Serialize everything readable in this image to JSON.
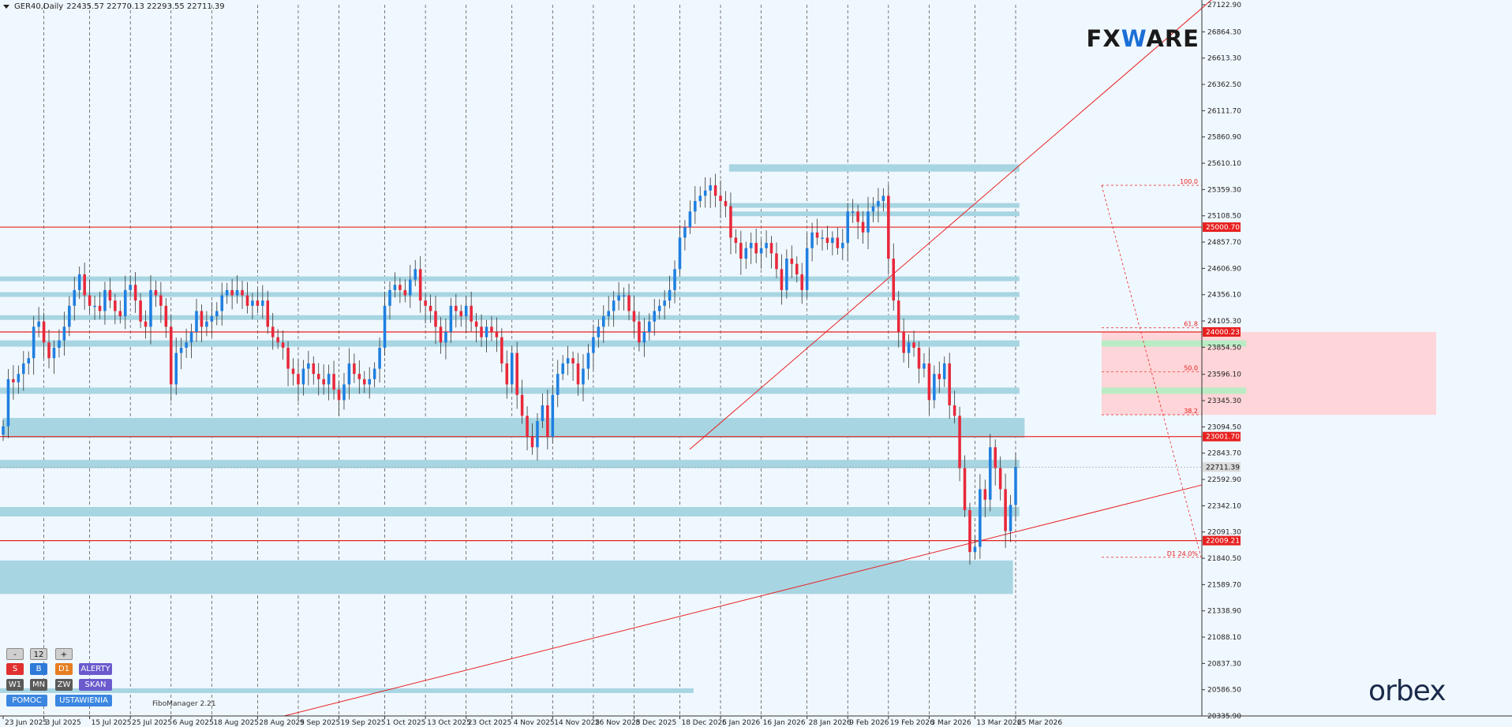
{
  "header": {
    "symbol": "GER40,Daily",
    "ohlc": "22435.57 22770.13 22293.55 22711.39"
  },
  "brand": {
    "prefix": "FX",
    "mid": "W",
    "suffix": "ARE"
  },
  "orbex_logo": "orbex",
  "fibo_manager": "FiboManager 2.21",
  "controls": {
    "minus": "-",
    "value": "12",
    "plus": "+",
    "s": "S",
    "b": "B",
    "d1": "D1",
    "alerty": "ALERTY",
    "w1": "W1",
    "mn": "MN",
    "zw": "ZW",
    "skan": "SKAN",
    "pomoc": "POMOC",
    "ustawienia": "USTAWIENIA"
  },
  "colors": {
    "background": "#f0f8ff",
    "bull": "#1e7fe0",
    "bear": "#e8283a",
    "zone": "#a8d5e2",
    "resistance_zone": "#ffd0d4",
    "green_zone": "#b9ecc4",
    "level_line": "#e82020"
  },
  "chart_data": {
    "type": "candlestick",
    "instrument": "GER40",
    "timeframe": "Daily",
    "ylim": [
      20335.9,
      27122.9
    ],
    "y_ticks": [
      "27122.90",
      "26864.30",
      "26613.30",
      "26362.50",
      "26111.70",
      "25860.90",
      "25610.10",
      "25359.30",
      "25108.50",
      "24857.70",
      "24606.90",
      "24356.10",
      "24105.30",
      "23854.50",
      "23596.10",
      "23345.30",
      "23094.50",
      "22843.70",
      "22592.90",
      "22342.10",
      "22091.30",
      "21840.50",
      "21589.70",
      "21338.90",
      "21088.10",
      "20837.30",
      "20586.50",
      "20335.90"
    ],
    "x_ticks": [
      "23 Jun 2025",
      "3 Jul 2025",
      "15 Jul 2025",
      "25 Jul 2025",
      "6 Aug 2025",
      "18 Aug 2025",
      "28 Aug 2025",
      "9 Sep 2025",
      "19 Sep 2025",
      "1 Oct 2025",
      "13 Oct 2025",
      "23 Oct 2025",
      "4 Nov 2025",
      "14 Nov 2025",
      "26 Nov 2025",
      "8 Dec 2025",
      "18 Dec 2025",
      "6 Jan 2026",
      "16 Jan 2026",
      "28 Jan 2026",
      "9 Feb 2026",
      "19 Feb 2026",
      "3 Mar 2026",
      "13 Mar 2026",
      "25 Mar 2026"
    ],
    "price_labels": [
      {
        "text": "25000.70",
        "value": 25000.7
      },
      {
        "text": "24000.23",
        "value": 24000.23
      },
      {
        "text": "23001.70",
        "value": 23001.7
      },
      {
        "text": "22009.21",
        "value": 22009.21
      },
      {
        "text": "22711.39",
        "value": 22711.39,
        "current": true
      }
    ],
    "fib_levels": [
      {
        "label": "100.0",
        "value": 25400
      },
      {
        "label": "61.8",
        "value": 24040
      },
      {
        "label": "50.0",
        "value": 23620
      },
      {
        "label": "38.2",
        "value": 23210
      },
      {
        "label": "D1 24.0%",
        "value": 21850
      }
    ],
    "closes": [
      23100,
      23550,
      23520,
      23600,
      23700,
      23750,
      24050,
      24100,
      23900,
      23750,
      23850,
      23920,
      24050,
      24250,
      24400,
      24550,
      24350,
      24250,
      24250,
      24200,
      24400,
      24300,
      24200,
      24150,
      24400,
      24450,
      24300,
      24100,
      24050,
      24400,
      24350,
      24250,
      24050,
      23500,
      23800,
      23850,
      23900,
      24000,
      24200,
      24050,
      24100,
      24150,
      24200,
      24350,
      24400,
      24350,
      24400,
      24350,
      24250,
      24300,
      24250,
      24300,
      24050,
      23950,
      23900,
      23850,
      23650,
      23600,
      23500,
      23650,
      23700,
      23600,
      23550,
      23500,
      23600,
      23450,
      23350,
      23500,
      23700,
      23600,
      23550,
      23500,
      23550,
      23650,
      23850,
      24250,
      24400,
      24450,
      24400,
      24350,
      24500,
      24600,
      24300,
      24250,
      24200,
      24050,
      23900,
      24000,
      24250,
      24200,
      24150,
      24250,
      24100,
      24050,
      23950,
      24050,
      24000,
      23950,
      23700,
      23500,
      23800,
      23400,
      23200,
      23000,
      22900,
      23150,
      23300,
      23000,
      23400,
      23600,
      23700,
      23750,
      23700,
      23500,
      23650,
      23800,
      23950,
      24050,
      24150,
      24200,
      24300,
      24350,
      24350,
      24200,
      24100,
      23900,
      24000,
      24100,
      24200,
      24250,
      24300,
      24400,
      24600,
      24900,
      25000,
      25150,
      25250,
      25300,
      25350,
      25400,
      25300,
      25250,
      25200,
      24900,
      24850,
      24700,
      24800,
      24850,
      24750,
      24800,
      24850,
      24750,
      24600,
      24400,
      24700,
      24650,
      24550,
      24400,
      24800,
      24950,
      24900,
      24900,
      24850,
      24900,
      24800,
      24850,
      25150,
      25150,
      25050,
      24950,
      25150,
      25200,
      25250,
      25300,
      24700,
      24300,
      24000,
      23800,
      23900,
      23850,
      23650,
      23700,
      23350,
      23600,
      23550,
      23700,
      23300,
      23200,
      22700,
      22300,
      21900,
      21950,
      22500,
      22400,
      22900,
      22700,
      22500,
      22100,
      22350,
      22711
    ]
  }
}
